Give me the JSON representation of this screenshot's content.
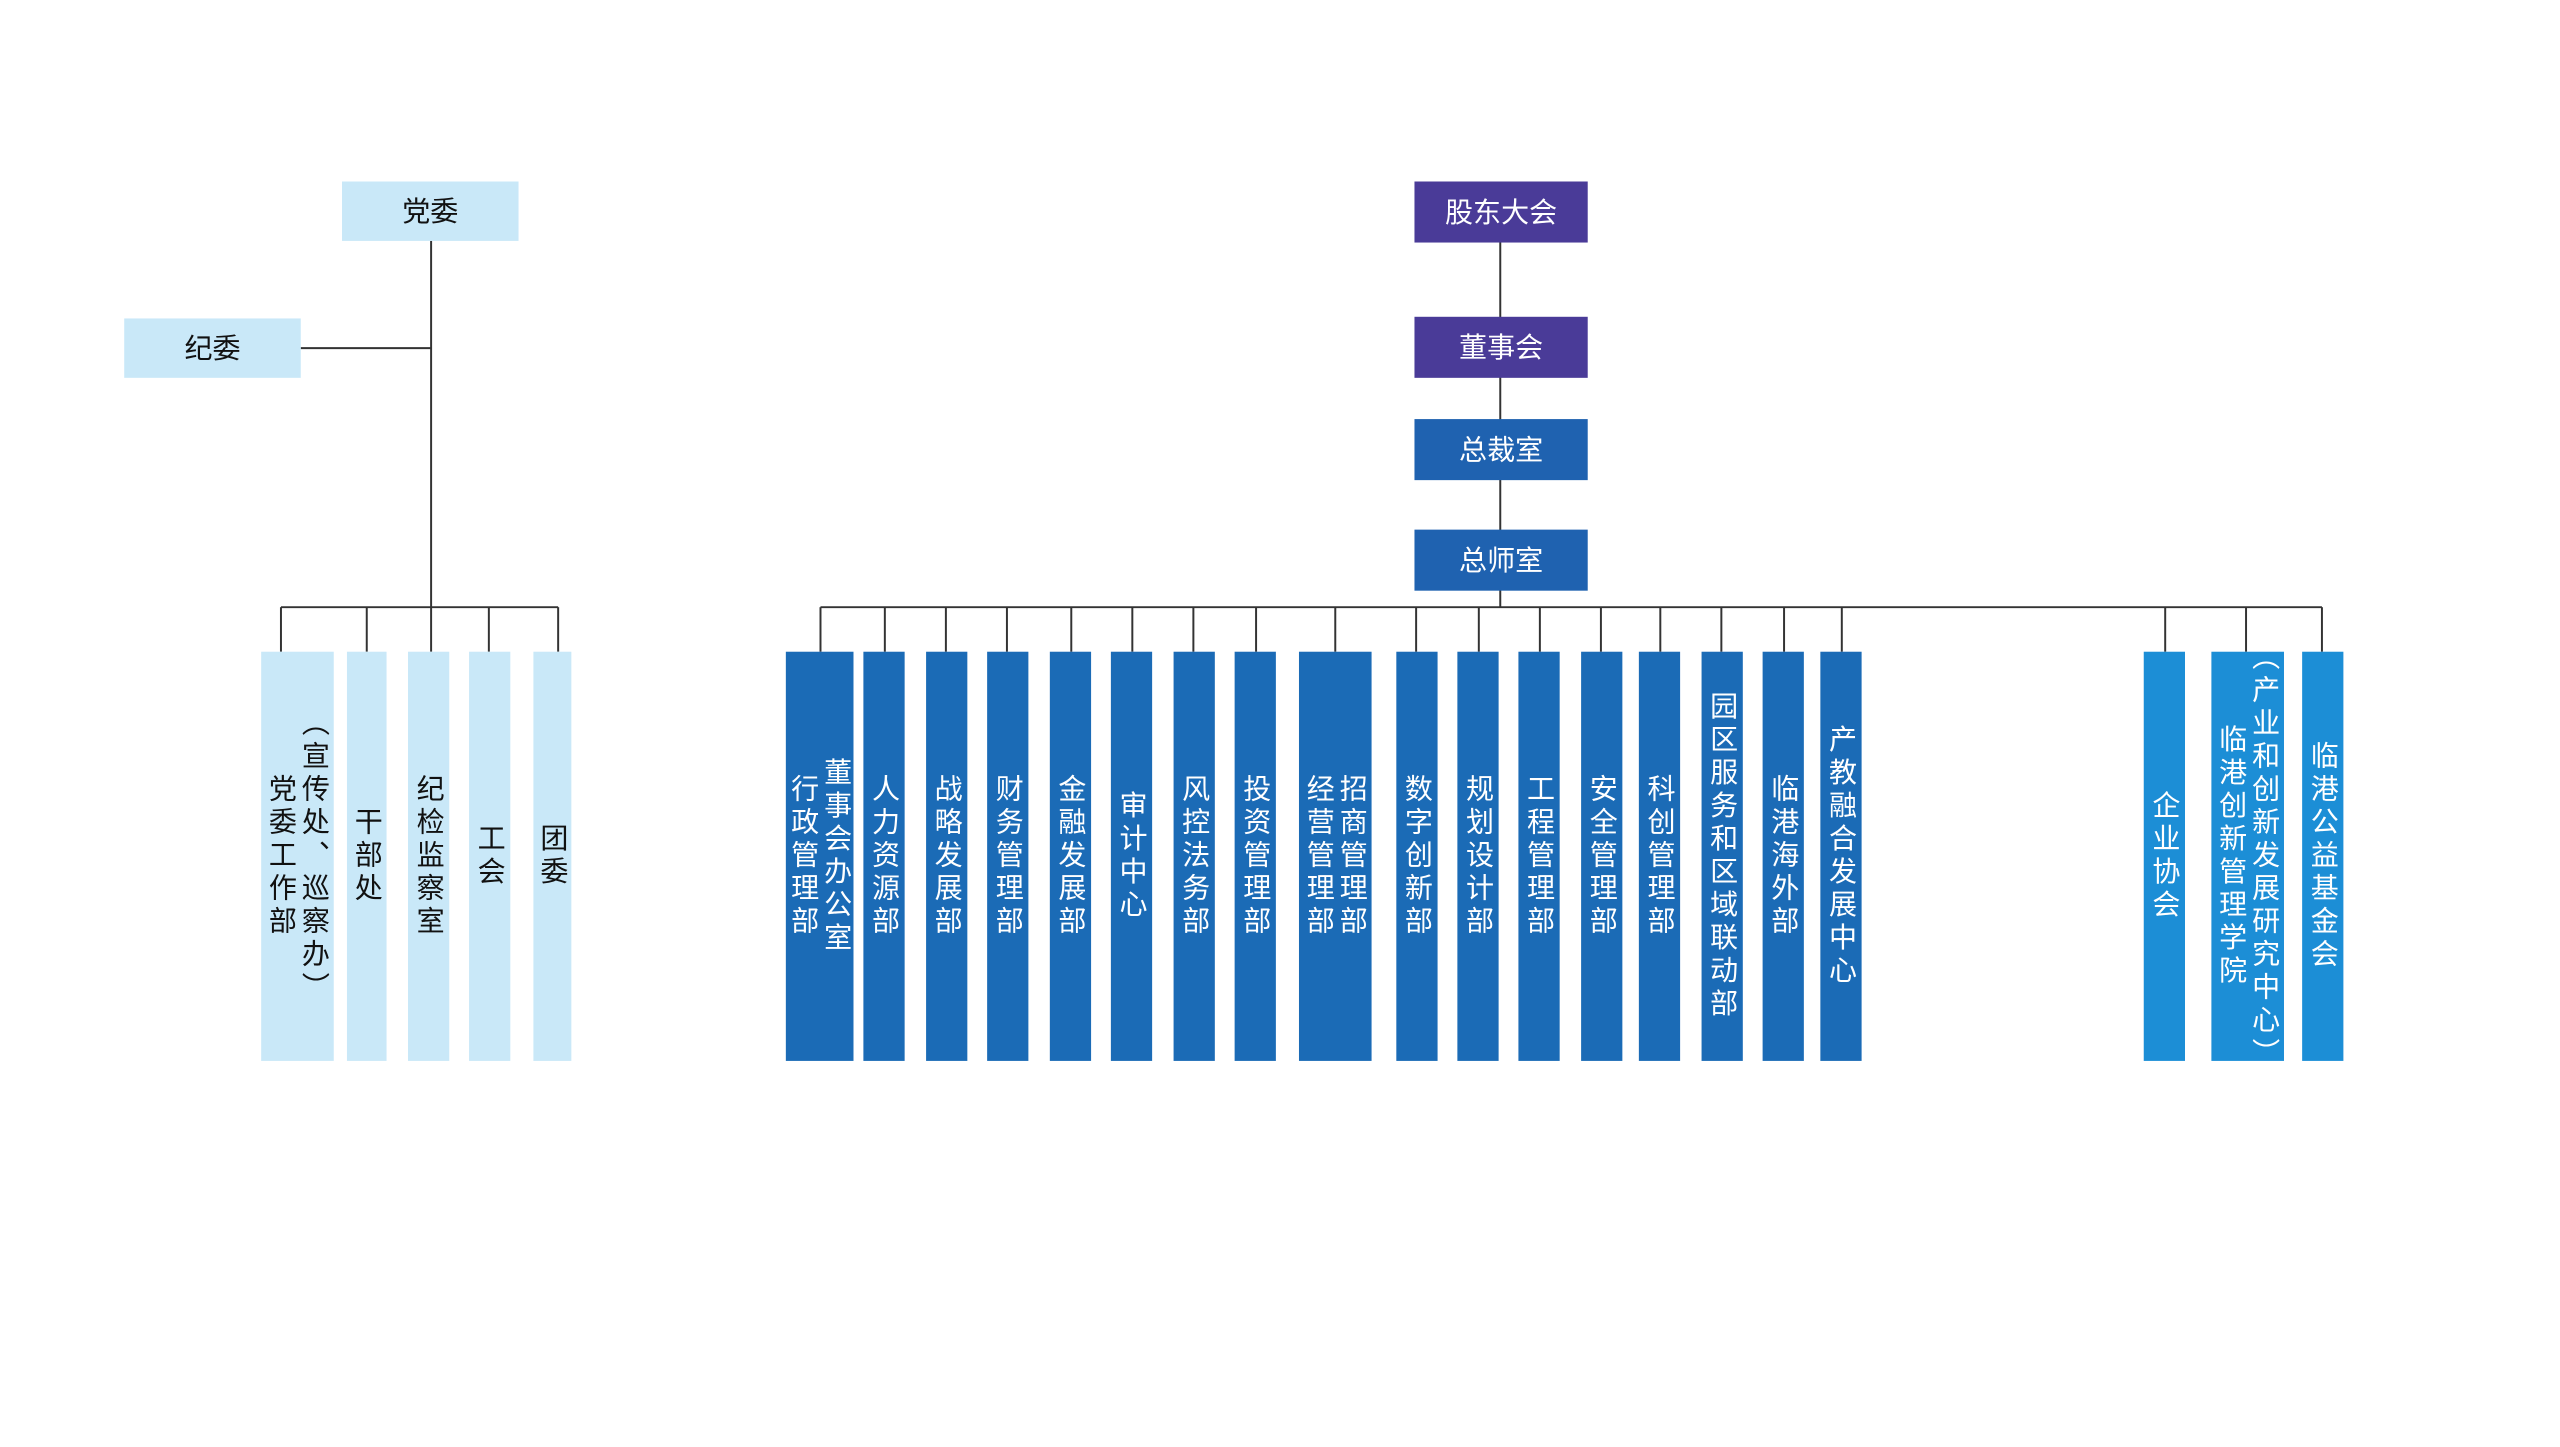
{
  "party": {
    "top": "党委",
    "side": "纪委",
    "departments": [
      {
        "lines": [
          "党委工作部",
          "（宣传处、巡察办）"
        ]
      },
      {
        "lines": [
          "干部处"
        ]
      },
      {
        "lines": [
          "纪检监察室"
        ]
      },
      {
        "lines": [
          "工会"
        ]
      },
      {
        "lines": [
          "团委"
        ]
      }
    ]
  },
  "corporate": {
    "levels": [
      "股东大会",
      "董事会",
      "总裁室",
      "总师室"
    ],
    "departments": [
      {
        "lines": [
          "董事会办公室",
          "行政管理部"
        ]
      },
      {
        "lines": [
          "人力资源部"
        ]
      },
      {
        "lines": [
          "战略发展部"
        ]
      },
      {
        "lines": [
          "财务管理部"
        ]
      },
      {
        "lines": [
          "金融发展部"
        ]
      },
      {
        "lines": [
          "审计中心"
        ]
      },
      {
        "lines": [
          "风控法务部"
        ]
      },
      {
        "lines": [
          "投资管理部"
        ]
      },
      {
        "lines": [
          "招商管理部",
          "经营管理部"
        ]
      },
      {
        "lines": [
          "数字创新部"
        ]
      },
      {
        "lines": [
          "规划设计部"
        ]
      },
      {
        "lines": [
          "工程管理部"
        ]
      },
      {
        "lines": [
          "安全管理部"
        ]
      },
      {
        "lines": [
          "科创管理部"
        ]
      },
      {
        "lines": [
          "园区服务和区域联动部"
        ]
      },
      {
        "lines": [
          "临港海外部"
        ]
      },
      {
        "lines": [
          "产教融合发展中心"
        ]
      }
    ],
    "affiliates": [
      {
        "lines": [
          "企业协会"
        ]
      },
      {
        "lines": [
          "临港创新管理学院",
          "（产业和创新发展研究中心）"
        ]
      },
      {
        "lines": [
          "临港公益基金会"
        ]
      }
    ]
  }
}
